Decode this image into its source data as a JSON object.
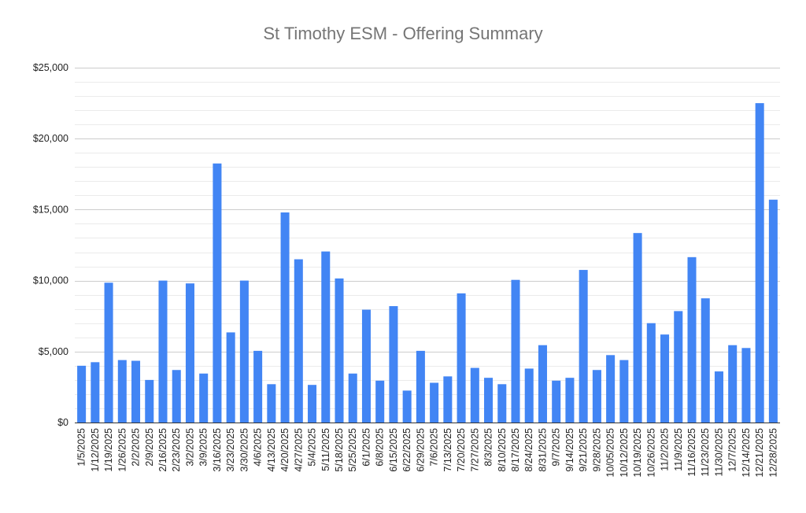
{
  "chart_data": {
    "type": "bar",
    "title": "St Timothy ESM - Offering Summary",
    "xlabel": "",
    "ylabel": "",
    "ylim": [
      0,
      25000
    ],
    "yticks": [
      0,
      5000,
      10000,
      15000,
      20000,
      25000
    ],
    "ytick_labels": [
      "$0",
      "$5,000",
      "$10,000",
      "$15,000",
      "$20,000",
      "$25,000"
    ],
    "grid": true,
    "legend": "none",
    "bar_color": "#4285f4",
    "categories": [
      "1/5/2025",
      "1/12/2025",
      "1/19/2025",
      "1/26/2025",
      "2/2/2025",
      "2/9/2025",
      "2/16/2025",
      "2/23/2025",
      "3/2/2025",
      "3/9/2025",
      "3/16/2025",
      "3/23/2025",
      "3/30/2025",
      "4/6/2025",
      "4/13/2025",
      "4/20/2025",
      "4/27/2025",
      "5/4/2025",
      "5/11/2025",
      "5/18/2025",
      "5/25/2025",
      "6/1/2025",
      "6/8/2025",
      "6/15/2025",
      "6/22/2025",
      "6/29/2025",
      "7/6/2025",
      "7/13/2025",
      "7/20/2025",
      "7/27/2025",
      "8/3/2025",
      "8/10/2025",
      "8/17/2025",
      "8/24/2025",
      "8/31/2025",
      "9/7/2025",
      "9/14/2025",
      "9/21/2025",
      "9/28/2025",
      "10/05/2025",
      "10/12/2025",
      "10/19/2025",
      "10/26/2025",
      "11/2/2025",
      "11/9/2025",
      "11/16/2025",
      "11/23/2025",
      "11/30/2025",
      "12/7/2025",
      "12/14/2025",
      "12/21/2025",
      "12/28/2025"
    ],
    "values": [
      4000,
      4250,
      9850,
      4400,
      4350,
      3000,
      10000,
      3700,
      9800,
      3450,
      18250,
      6350,
      10000,
      5050,
      2700,
      14800,
      11500,
      2650,
      12050,
      10150,
      3450,
      7950,
      2950,
      8200,
      2250,
      5050,
      2800,
      3250,
      9100,
      3850,
      3150,
      2700,
      10050,
      3800,
      5450,
      2950,
      3150,
      10750,
      3700,
      4750,
      4400,
      13350,
      7000,
      6200,
      7850,
      11650,
      8750,
      3600,
      5450,
      5250,
      22500,
      15700
    ]
  }
}
